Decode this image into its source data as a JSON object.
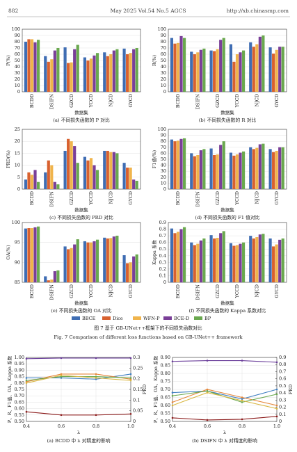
{
  "header": {
    "page": "882",
    "journal": "May 2025 Vol.54 No.5 AGCS",
    "url": "http://xb.chinasmp.com"
  },
  "figure7": {
    "caption_cn": "图 7   基于 GB-UNet++框架下的不同损失函数对比",
    "caption_en": "Fig. 7   Comparison of different loss functions based on GB-UNet++ framework"
  },
  "chart_data": [
    {
      "type": "bar",
      "caption": "(a) 不同损失函数的 P 对比",
      "x_label": "数据集",
      "y_label": "P(%)",
      "categories": [
        "BCDD",
        "DSIFN",
        "GZCD",
        "YCCD",
        "NJCD",
        "GYCD"
      ],
      "series": [
        {
          "name": "BBCE",
          "color": "#3f6db3",
          "values": [
            80,
            57,
            71,
            55,
            63,
            69
          ]
        },
        {
          "name": "Dice",
          "color": "#d8612f",
          "values": [
            84,
            48,
            46,
            50,
            57,
            60
          ]
        },
        {
          "name": "WFN-P",
          "color": "#f0b44c",
          "values": [
            84,
            52,
            47,
            53,
            60,
            62
          ]
        },
        {
          "name": "BCE-D",
          "color": "#7a3f98",
          "values": [
            79,
            66,
            68,
            58,
            66,
            68
          ]
        },
        {
          "name": "BP",
          "color": "#6aa84f",
          "values": [
            83,
            70,
            75,
            62,
            68,
            70
          ]
        }
      ],
      "ylim": [
        0,
        100
      ],
      "yticks": [
        0,
        10,
        20,
        30,
        40,
        50,
        60,
        70,
        80,
        90,
        100
      ],
      "grid": true
    },
    {
      "type": "bar",
      "caption": "(b) 不同损失函数的 R 对比",
      "x_label": "数据集",
      "y_label": "R(%)",
      "categories": [
        "BCDD",
        "DSIFN",
        "GZCD",
        "YCCD",
        "NJCD",
        "GYCD"
      ],
      "series": [
        {
          "color": "#3f6db3",
          "values": [
            86,
            64,
            66,
            76,
            79,
            71
          ]
        },
        {
          "color": "#d8612f",
          "values": [
            77,
            60,
            65,
            48,
            72,
            61
          ]
        },
        {
          "color": "#f0b44c",
          "values": [
            78,
            63,
            68,
            60,
            76,
            67
          ]
        },
        {
          "color": "#7a3f98",
          "values": [
            89,
            67,
            83,
            63,
            88,
            72
          ]
        },
        {
          "color": "#6aa84f",
          "values": [
            86,
            69,
            86,
            66,
            90,
            72
          ]
        }
      ],
      "ylim": [
        0,
        100
      ],
      "yticks": [
        0,
        10,
        20,
        30,
        40,
        50,
        60,
        70,
        80,
        90,
        100
      ],
      "grid": true
    },
    {
      "type": "bar",
      "caption": "(c) 不同损失函数的 PRD 对比",
      "x_label": "数据集",
      "y_label": "PRD(%)",
      "categories": [
        "BCDD",
        "DSIFN",
        "GZCD",
        "YCCD",
        "NJCD",
        "GYCD"
      ],
      "series": [
        {
          "color": "#3f6db3",
          "values": [
            4,
            7,
            16,
            13.5,
            16,
            11
          ]
        },
        {
          "color": "#d8612f",
          "values": [
            7,
            12,
            21,
            12,
            16,
            9
          ]
        },
        {
          "color": "#f0b44c",
          "values": [
            6,
            10,
            20,
            13,
            15.5,
            9
          ]
        },
        {
          "color": "#7a3f98",
          "values": [
            8,
            3,
            18,
            10,
            15.5,
            4
          ]
        },
        {
          "color": "#6aa84f",
          "values": [
            3,
            2,
            11,
            8,
            15,
            3.5
          ]
        }
      ],
      "ylim": [
        0,
        25
      ],
      "yticks": [
        0,
        5,
        10,
        15,
        20,
        25
      ],
      "grid": true
    },
    {
      "type": "bar",
      "caption": "(d) 不同损失函数的 F1 值对比",
      "x_label": "数据集",
      "y_label": "F1值(%)",
      "categories": [
        "BCDD",
        "DSIFN",
        "GZCD",
        "YCCD",
        "NJCD",
        "GYCD"
      ],
      "series": [
        {
          "color": "#3f6db3",
          "values": [
            83,
            60,
            68,
            61,
            70,
            67
          ]
        },
        {
          "color": "#d8612f",
          "values": [
            80,
            55,
            57,
            56,
            67,
            62
          ]
        },
        {
          "color": "#f0b44c",
          "values": [
            81,
            57,
            58,
            58,
            69,
            64
          ]
        },
        {
          "color": "#7a3f98",
          "values": [
            84,
            65,
            74,
            61,
            75,
            70
          ]
        },
        {
          "color": "#6aa84f",
          "values": [
            85,
            67,
            80,
            63,
            76,
            70
          ]
        }
      ],
      "ylim": [
        0,
        100
      ],
      "yticks": [
        0,
        10,
        20,
        30,
        40,
        50,
        60,
        70,
        80,
        90,
        100
      ],
      "grid": true
    },
    {
      "type": "bar",
      "caption": "(e) 不同损失函数的 OA 对比",
      "x_label": "数据集",
      "y_label": "OA(%)",
      "categories": [
        "BCDD",
        "DSIFN",
        "GZCD",
        "YCCD",
        "NJCD",
        "GYCD"
      ],
      "series": [
        {
          "color": "#3f6db3",
          "values": [
            98.5,
            86.5,
            94,
            95.3,
            96.2,
            91.8
          ]
        },
        {
          "color": "#d8612f",
          "values": [
            98.6,
            85.5,
            93.3,
            95,
            96,
            89.8
          ]
        },
        {
          "color": "#f0b44c",
          "values": [
            98.6,
            85.7,
            93.6,
            95,
            96.1,
            90
          ]
        },
        {
          "color": "#7a3f98",
          "values": [
            98.8,
            87.8,
            94.5,
            95.3,
            96.5,
            91.5
          ]
        },
        {
          "color": "#6aa84f",
          "values": [
            99,
            88,
            95.8,
            95.7,
            96.7,
            92
          ]
        }
      ],
      "ylim": [
        85,
        100
      ],
      "yticks": [
        85,
        90,
        95,
        100
      ],
      "grid": true
    },
    {
      "type": "bar",
      "caption": "(f) 不同损失函数的 Kappa 系数对比",
      "x_label": "数据集",
      "y_label": "Kappa 系数",
      "categories": [
        "BCDD",
        "DSIFN",
        "GZCD",
        "YCCD",
        "NJCD",
        "GYCD"
      ],
      "series": [
        {
          "color": "#3f6db3",
          "values": [
            0.81,
            0.6,
            0.71,
            0.59,
            0.7,
            0.66
          ]
        },
        {
          "color": "#d8612f",
          "values": [
            0.74,
            0.56,
            0.66,
            0.55,
            0.66,
            0.54
          ]
        },
        {
          "color": "#f0b44c",
          "values": [
            0.76,
            0.58,
            0.67,
            0.56,
            0.68,
            0.57
          ]
        },
        {
          "color": "#7a3f98",
          "values": [
            0.8,
            0.63,
            0.74,
            0.58,
            0.72,
            0.64
          ]
        },
        {
          "color": "#6aa84f",
          "values": [
            0.83,
            0.66,
            0.77,
            0.6,
            0.73,
            0.66
          ]
        }
      ],
      "ylim": [
        0,
        0.9
      ],
      "yticks": [
        0,
        0.1,
        0.2,
        0.3,
        0.4,
        0.5,
        0.6,
        0.7,
        0.8,
        0.9
      ],
      "grid": true
    },
    {
      "type": "line",
      "caption": "(a) BCDD 中 λ 对精度的影响",
      "x_label": "λ",
      "y_label": "P、R、F1值、OA、Kappa 系数",
      "y2_label": "PRD",
      "x": [
        0.4,
        0.6,
        0.8,
        1.0
      ],
      "xlim": [
        0.4,
        1.0
      ],
      "xticks": [
        0.4,
        0.6,
        0.8,
        {
          "value": 1.0,
          "label": "1.0"
        }
      ],
      "ylim": [
        0.5,
        1.0
      ],
      "yticks": [
        {
          "value": 0.5,
          "label": "0.50"
        },
        0.55,
        {
          "value": 0.6,
          "label": "0.60"
        },
        0.65,
        {
          "value": 0.7,
          "label": "0.70"
        },
        0.75,
        {
          "value": 0.8,
          "label": "0.80"
        },
        0.85,
        {
          "value": 0.9,
          "label": "0.90"
        },
        0.95,
        {
          "value": 1.0,
          "label": "1.00"
        }
      ],
      "y2lim": [
        0,
        0.3
      ],
      "y2ticks": [
        0,
        0.05,
        0.1,
        0.15,
        0.2,
        0.25,
        0.3
      ],
      "grid": true,
      "series": [
        {
          "color": "#6a3d9a",
          "values": [
            0.99,
            0.995,
            0.995,
            0.995
          ]
        },
        {
          "color": "#3f7fc0",
          "values": [
            0.84,
            0.84,
            0.83,
            0.87
          ]
        },
        {
          "color": "#e6873a",
          "values": [
            0.81,
            0.87,
            0.87,
            0.83
          ]
        },
        {
          "color": "#6aa84f",
          "values": [
            0.82,
            0.85,
            0.85,
            0.84
          ]
        },
        {
          "color": "#d9b640",
          "values": [
            0.8,
            0.86,
            0.84,
            0.82
          ]
        },
        {
          "color": "#8b1a1a",
          "axis": "y2",
          "values": [
            0.045,
            0.03,
            0.03,
            0.035
          ]
        }
      ]
    },
    {
      "type": "line",
      "caption": "(b) DSIFN 中 λ 对精度的影响",
      "x_label": "λ",
      "y_label": "P、R、F1值、OA、Kappa 系数",
      "y2_label": "PRD",
      "x": [
        0.4,
        0.6,
        0.8,
        1.0
      ],
      "xlim": [
        0.4,
        1.0
      ],
      "xticks": [
        0.4,
        0.6,
        0.8,
        {
          "value": 1.0,
          "label": "1.0"
        }
      ],
      "ylim": [
        0.5,
        0.9
      ],
      "yticks": [
        {
          "value": 0.5,
          "label": "0.50"
        },
        0.55,
        {
          "value": 0.6,
          "label": "0.60"
        },
        0.65,
        {
          "value": 0.7,
          "label": "0.70"
        },
        0.75,
        {
          "value": 0.8,
          "label": "0.80"
        },
        0.85,
        {
          "value": 0.9,
          "label": "0.90"
        }
      ],
      "y2lim": [
        0,
        0.9
      ],
      "y2ticks": [
        0,
        0.1,
        0.2,
        0.3,
        0.4,
        0.5,
        0.6,
        0.7,
        0.8,
        0.9
      ],
      "grid": true,
      "series": [
        {
          "color": "#6a3d9a",
          "values": [
            0.875,
            0.88,
            0.88,
            0.87
          ]
        },
        {
          "color": "#3f7fc0",
          "values": [
            0.68,
            0.69,
            0.64,
            0.7
          ]
        },
        {
          "color": "#e6873a",
          "values": [
            0.62,
            0.7,
            0.65,
            0.6
          ]
        },
        {
          "color": "#6aa84f",
          "values": [
            0.66,
            0.69,
            0.62,
            0.67
          ]
        },
        {
          "color": "#d9b640",
          "values": [
            0.6,
            0.68,
            0.63,
            0.58
          ]
        },
        {
          "color": "#8b1a1a",
          "axis": "y2",
          "values": [
            0.05,
            0.02,
            0.03,
            0.07
          ]
        }
      ]
    }
  ]
}
